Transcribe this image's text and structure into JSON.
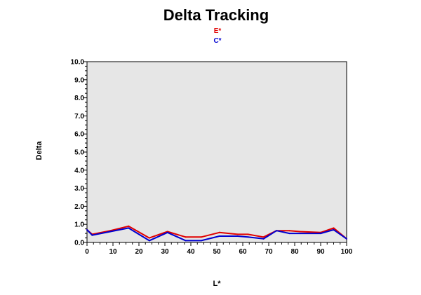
{
  "chart_data": {
    "type": "line",
    "title": "Delta Tracking",
    "xlabel": "L*",
    "ylabel": "Delta",
    "xlim": [
      0,
      100
    ],
    "ylim": [
      0,
      10
    ],
    "x_ticks": [
      0,
      10,
      20,
      30,
      40,
      50,
      60,
      70,
      80,
      90,
      100
    ],
    "y_ticks": [
      "0.0",
      "1.0",
      "2.0",
      "3.0",
      "4.0",
      "5.0",
      "6.0",
      "7.0",
      "8.0",
      "9.0",
      "10.0"
    ],
    "plot_background": "#e6e6e6",
    "grid": false,
    "legend_position": "top-center",
    "series": [
      {
        "name": "E*",
        "color": "#e00000",
        "x": [
          0,
          2,
          9,
          16,
          24,
          31,
          38,
          44,
          51,
          58,
          62,
          68,
          73,
          78,
          82,
          90,
          95,
          100
        ],
        "y": [
          0.7,
          0.45,
          0.65,
          0.9,
          0.25,
          0.6,
          0.3,
          0.3,
          0.55,
          0.45,
          0.45,
          0.3,
          0.65,
          0.65,
          0.6,
          0.55,
          0.8,
          0.2
        ]
      },
      {
        "name": "C*",
        "color": "#0000d0",
        "x": [
          0,
          2,
          9,
          16,
          24,
          31,
          38,
          44,
          51,
          58,
          62,
          68,
          73,
          78,
          82,
          90,
          95,
          100
        ],
        "y": [
          0.7,
          0.4,
          0.6,
          0.8,
          0.1,
          0.55,
          0.1,
          0.1,
          0.35,
          0.35,
          0.3,
          0.2,
          0.65,
          0.5,
          0.5,
          0.5,
          0.7,
          0.2
        ]
      }
    ]
  }
}
